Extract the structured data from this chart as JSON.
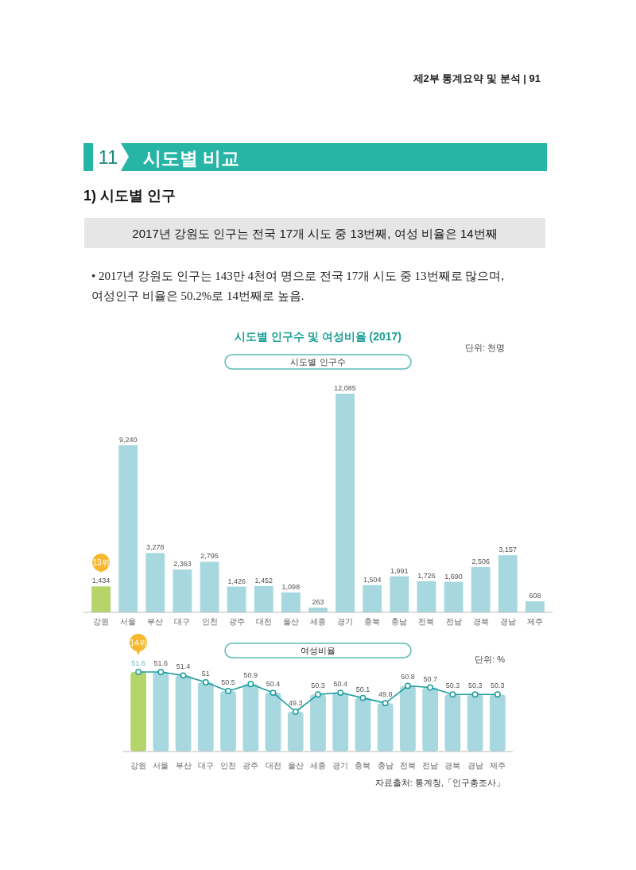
{
  "chart_data": [
    {
      "type": "bar",
      "title": "시도별 인구수 및 여성비율 (2017)",
      "subtitle": "시도별 인구수",
      "annotations": [
        "제2부 통계요약 및 분석 | 91",
        "11",
        "시도별 비교",
        "1) 시도별 인구",
        "2017년 강원도 인구는 전국 17개 시도 중 13번째, 여성 비율은 14번째",
        "• 2017년 강원도 인구는 143만 4천여 명으로 전국 17개 시도 중 13번째로 많으며, 여성인구 비율은 50.2%로 14번째로 높음.",
        "단위: 천명",
        {
          "text": "13위",
          "x": "강원",
          "y": 1434
        }
      ],
      "categories": [
        "강원",
        "서울",
        "부산",
        "대구",
        "인천",
        "광주",
        "대전",
        "울산",
        "세종",
        "경기",
        "충북",
        "충남",
        "전북",
        "전남",
        "경북",
        "경남",
        "제주"
      ],
      "values": [
        1434,
        9240,
        3278,
        2363,
        2795,
        1426,
        1452,
        1098,
        263,
        12085,
        1504,
        1991,
        1726,
        1690,
        2506,
        3157,
        608
      ],
      "value_labels": [
        "1,434",
        "9,240",
        "3,278",
        "2,363",
        "2,795",
        "1,426",
        "1,452",
        "1,098",
        "263",
        "12,085",
        "1,504",
        "1,991",
        "1,726",
        "1,690",
        "2,506",
        "3,157",
        "608"
      ],
      "colors": [
        "#b5d56a",
        "#a8d8df",
        "#a8d8df",
        "#a8d8df",
        "#a8d8df",
        "#a8d8df",
        "#a8d8df",
        "#a8d8df",
        "#a8d8df",
        "#a8d8df",
        "#a8d8df",
        "#a8d8df",
        "#a8d8df",
        "#a8d8df",
        "#a8d8df",
        "#a8d8df",
        "#a8d8df"
      ],
      "tick_labels": "x",
      "grid": false
    },
    {
      "type": "bar",
      "title": "여성비율",
      "annotations": [
        "단위: %",
        "14위",
        "자료출처: 통계청,「인구총조사」"
      ],
      "categories": [
        "강원",
        "서울",
        "부산",
        "대구",
        "인천",
        "광주",
        "대전",
        "울산",
        "세종",
        "경기",
        "충북",
        "충남",
        "전북",
        "전남",
        "경북",
        "경남",
        "제주"
      ],
      "series": [
        {
          "type": "bar",
          "colors": [
            "#b5d56a",
            "#a8d8df",
            "#a8d8df",
            "#a8d8df",
            "#a8d8df",
            "#a8d8df",
            "#a8d8df",
            "#a8d8df",
            "#a8d8df",
            "#a8d8df",
            "#a8d8df",
            "#a8d8df",
            "#a8d8df",
            "#a8d8df",
            "#a8d8df",
            "#a8d8df",
            "#a8d8df"
          ],
          "values": [
            51.6,
            51.6,
            51.4,
            51,
            50.5,
            50.9,
            50.4,
            49.3,
            50.3,
            50.4,
            50.1,
            49.8,
            50.8,
            50.7,
            50.3,
            50.3,
            50.3
          ]
        },
        {
          "type": "line",
          "color": "#1f9e9e",
          "marker": "circle",
          "values": [
            51.6,
            51.6,
            51.4,
            51,
            50.5,
            50.9,
            50.4,
            49.3,
            50.3,
            50.4,
            50.1,
            49.8,
            50.8,
            50.7,
            50.3,
            50.3,
            50.3
          ],
          "value_labels": [
            "51.6",
            "51.6",
            "51.4",
            "51",
            "50.5",
            "50.9",
            "50.4",
            "49.3",
            "50.3",
            "50.4",
            "50.1",
            "49.8",
            "50.8",
            "50.7",
            "50.3",
            "50.3",
            "50.3"
          ]
        }
      ],
      "ylim": [
        47,
        51.6
      ],
      "tick_labels": "x",
      "grid": false
    }
  ]
}
